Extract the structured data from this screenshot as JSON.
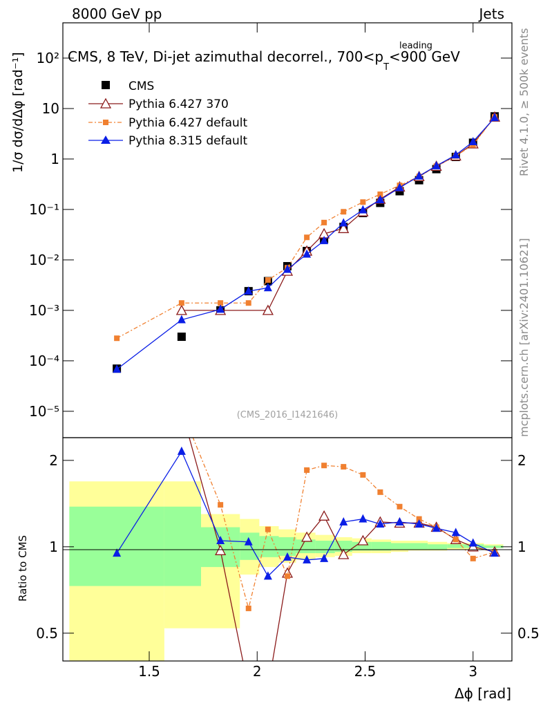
{
  "header": {
    "left": "8000 GeV pp",
    "right": "Jets"
  },
  "title": {
    "main": "CMS, 8 TeV, Di-jet azimuthal decorrel., 700<p",
    "sup": "leading",
    "sub": "T",
    "tail": "<900 GeV"
  },
  "ylabel": "1/σ dσ/dΔφ [rad⁻¹]",
  "xlabel": "Δϕ [rad]",
  "ratio_ylabel": "Ratio to CMS",
  "watermark": "(CMS_2016_I1421646)",
  "side_top": "Rivet 4.1.0, ≥ 500k events",
  "side_bottom": "mcplots.cern.ch [arXiv:2401.10621]",
  "legend": [
    {
      "label": "CMS",
      "color": "#000000",
      "marker": "square"
    },
    {
      "label": "Pythia 6.427 370",
      "color": "#8b1a1a",
      "marker": "open-triangle"
    },
    {
      "label": "Pythia 6.427 default",
      "color": "#f08030",
      "marker": "square-small"
    },
    {
      "label": "Pythia 8.315 default",
      "color": "#0a1ee6",
      "marker": "triangle"
    }
  ],
  "axes": {
    "main_y_ticks": [
      "10⁻⁵",
      "10⁻⁴",
      "10⁻³",
      "10⁻²",
      "10⁻¹",
      "1",
      "10",
      "10²"
    ],
    "ratio_y_ticks": [
      "0.5",
      "1",
      "2"
    ],
    "x_ticks": [
      "1.5",
      "2",
      "2.5",
      "3"
    ]
  },
  "chart_data": {
    "type": "line",
    "x_range": [
      1.1,
      3.18
    ],
    "main_ylim": [
      3e-06,
      500
    ],
    "ratio_ylim": [
      0.4,
      2.4
    ],
    "bins": [
      1.35,
      1.65,
      1.83,
      1.96,
      2.05,
      2.14,
      2.23,
      2.31,
      2.4,
      2.49,
      2.57,
      2.66,
      2.75,
      2.83,
      2.92,
      3.0,
      3.1
    ],
    "band_edges": [
      1.13,
      1.57,
      1.74,
      1.92,
      2.01,
      2.1,
      2.18,
      2.27,
      2.36,
      2.44,
      2.53,
      2.62,
      2.7,
      2.79,
      2.88,
      2.97,
      3.05,
      3.14
    ],
    "band_inner": [
      [
        0.73,
        1.38
      ],
      [
        0.73,
        1.38
      ],
      [
        0.85,
        1.17
      ],
      [
        0.9,
        1.12
      ],
      [
        0.92,
        1.09
      ],
      [
        0.93,
        1.08
      ],
      [
        0.95,
        1.06
      ],
      [
        0.95,
        1.05
      ],
      [
        0.96,
        1.05
      ],
      [
        0.97,
        1.04
      ],
      [
        0.97,
        1.04
      ],
      [
        0.98,
        1.03
      ],
      [
        0.98,
        1.03
      ],
      [
        0.98,
        1.02
      ],
      [
        0.99,
        1.02
      ],
      [
        0.99,
        1.02
      ],
      [
        0.99,
        1.01
      ]
    ],
    "band_outer": [
      [
        0.35,
        1.69
      ],
      [
        0.52,
        1.69
      ],
      [
        0.52,
        1.3
      ],
      [
        0.8,
        1.25
      ],
      [
        0.85,
        1.18
      ],
      [
        0.88,
        1.15
      ],
      [
        0.9,
        1.12
      ],
      [
        0.92,
        1.1
      ],
      [
        0.93,
        1.08
      ],
      [
        0.95,
        1.07
      ],
      [
        0.95,
        1.06
      ],
      [
        0.96,
        1.05
      ],
      [
        0.97,
        1.05
      ],
      [
        0.97,
        1.04
      ],
      [
        0.98,
        1.03
      ],
      [
        0.98,
        1.03
      ],
      [
        0.99,
        1.02
      ]
    ],
    "series": [
      {
        "name": "CMS",
        "values": [
          7e-05,
          0.0003,
          0.001,
          0.0024,
          0.0038,
          0.0075,
          0.015,
          0.026,
          0.045,
          0.085,
          0.135,
          0.23,
          0.38,
          0.63,
          1.1,
          2.1,
          7.0
        ]
      },
      {
        "name": "Pythia 6.427 370",
        "values": [
          null,
          0.001,
          0.001,
          null,
          0.001,
          0.006,
          0.015,
          0.033,
          0.042,
          0.09,
          0.16,
          0.28,
          0.45,
          0.72,
          1.15,
          2.0,
          6.8
        ],
        "ratio": [
          null,
          3.3,
          0.97,
          0.3,
          0.26,
          0.81,
          1.08,
          1.28,
          0.94,
          1.05,
          1.22,
          1.21,
          1.21,
          1.17,
          1.06,
          1.0,
          0.96
        ]
      },
      {
        "name": "Pythia 6.427 default",
        "values": [
          0.00028,
          0.0014,
          0.0014,
          0.0014,
          0.004,
          0.007,
          0.028,
          0.055,
          0.09,
          0.14,
          0.2,
          0.3,
          0.45,
          0.72,
          1.15,
          1.9,
          6.8
        ],
        "ratio": [
          null,
          4.0,
          1.4,
          0.61,
          1.15,
          0.79,
          1.85,
          1.92,
          1.9,
          1.78,
          1.55,
          1.38,
          1.25,
          1.17,
          1.06,
          0.91,
          0.96
        ]
      },
      {
        "name": "Pythia 8.315 default",
        "values": [
          6.8e-05,
          0.00065,
          0.00105,
          0.0024,
          0.0028,
          0.0065,
          0.013,
          0.024,
          0.054,
          0.098,
          0.155,
          0.27,
          0.46,
          0.73,
          1.2,
          2.2,
          6.6
        ],
        "ratio": [
          0.95,
          2.15,
          1.05,
          1.04,
          0.79,
          0.92,
          0.9,
          0.91,
          1.22,
          1.25,
          1.2,
          1.22,
          1.2,
          1.16,
          1.12,
          1.03,
          0.95
        ]
      }
    ]
  }
}
